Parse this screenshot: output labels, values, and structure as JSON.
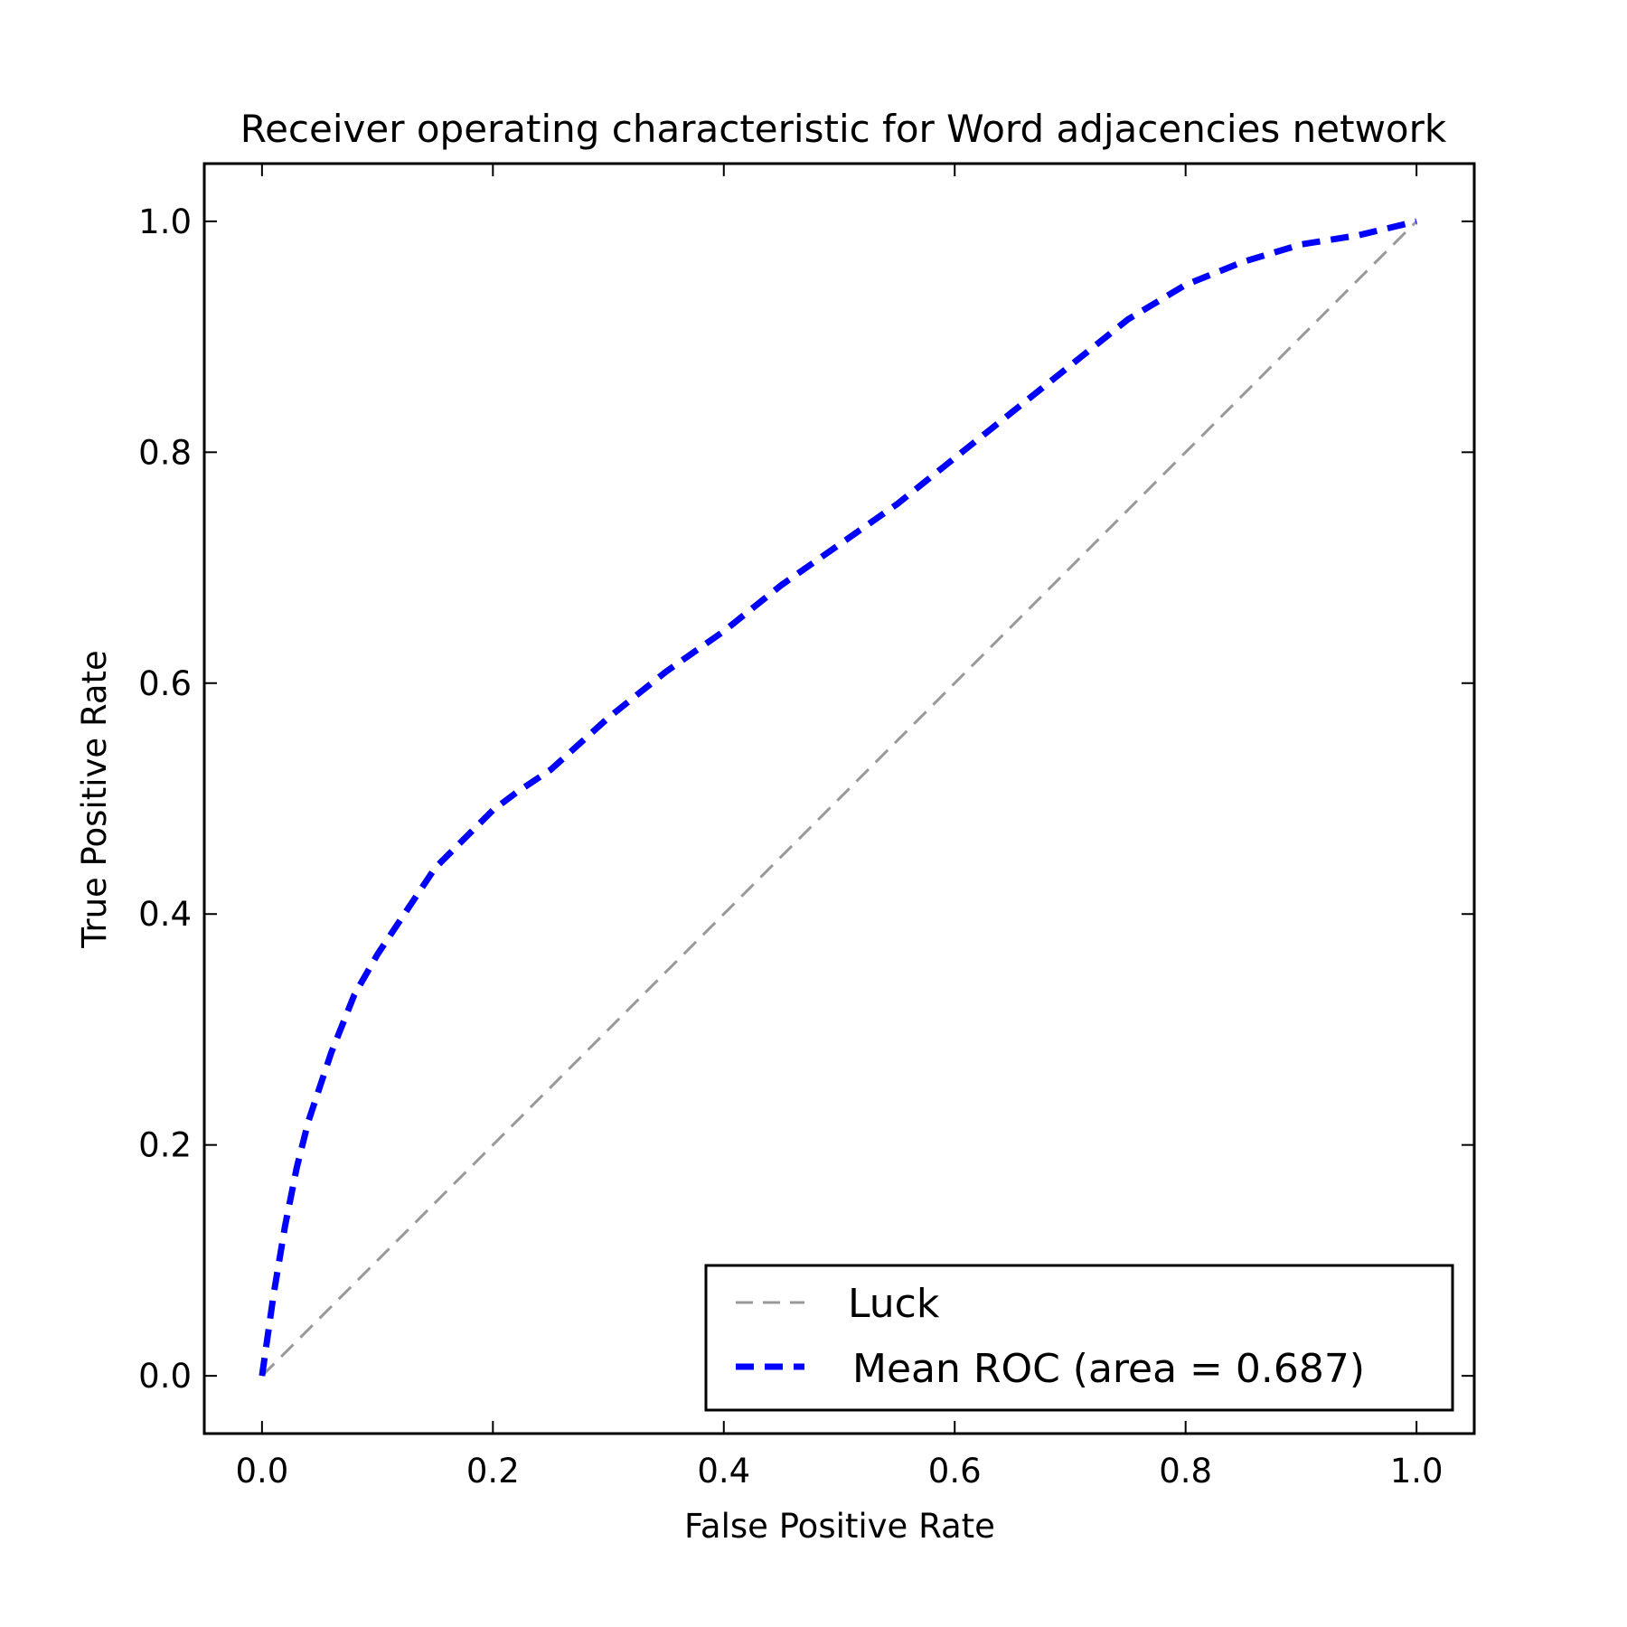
{
  "chart_data": {
    "type": "line",
    "title": "Receiver operating characteristic for Word adjacencies network",
    "xlabel": "False Positive Rate",
    "ylabel": "True Positive Rate",
    "xlim": [
      -0.05,
      1.05
    ],
    "ylim": [
      -0.05,
      1.05
    ],
    "xticks": [
      0.0,
      0.2,
      0.4,
      0.6,
      0.8,
      1.0
    ],
    "yticks": [
      0.0,
      0.2,
      0.4,
      0.6,
      0.8,
      1.0
    ],
    "xtick_labels": [
      "0.0",
      "0.2",
      "0.4",
      "0.6",
      "0.8",
      "1.0"
    ],
    "ytick_labels": [
      "0.0",
      "0.2",
      "0.4",
      "0.6",
      "0.8",
      "1.0"
    ],
    "grid": false,
    "legend_position": "lower-right",
    "series": [
      {
        "name": "Luck",
        "color": "#999999",
        "linestyle": "dashed",
        "x": [
          0.0,
          1.0
        ],
        "y": [
          0.0,
          1.0
        ]
      },
      {
        "name": "Mean ROC (area = 0.687)",
        "color": "#0000ff",
        "linestyle": "dashed",
        "x": [
          0.0,
          0.01,
          0.02,
          0.03,
          0.04,
          0.05,
          0.06,
          0.08,
          0.1,
          0.12,
          0.15,
          0.18,
          0.2,
          0.22,
          0.25,
          0.3,
          0.35,
          0.4,
          0.45,
          0.5,
          0.55,
          0.6,
          0.65,
          0.7,
          0.75,
          0.8,
          0.85,
          0.9,
          0.95,
          1.0
        ],
        "y": [
          0.0,
          0.07,
          0.13,
          0.18,
          0.22,
          0.25,
          0.28,
          0.33,
          0.365,
          0.395,
          0.44,
          0.47,
          0.49,
          0.505,
          0.525,
          0.57,
          0.61,
          0.645,
          0.685,
          0.72,
          0.755,
          0.795,
          0.835,
          0.875,
          0.915,
          0.945,
          0.965,
          0.98,
          0.988,
          1.0
        ]
      }
    ]
  }
}
